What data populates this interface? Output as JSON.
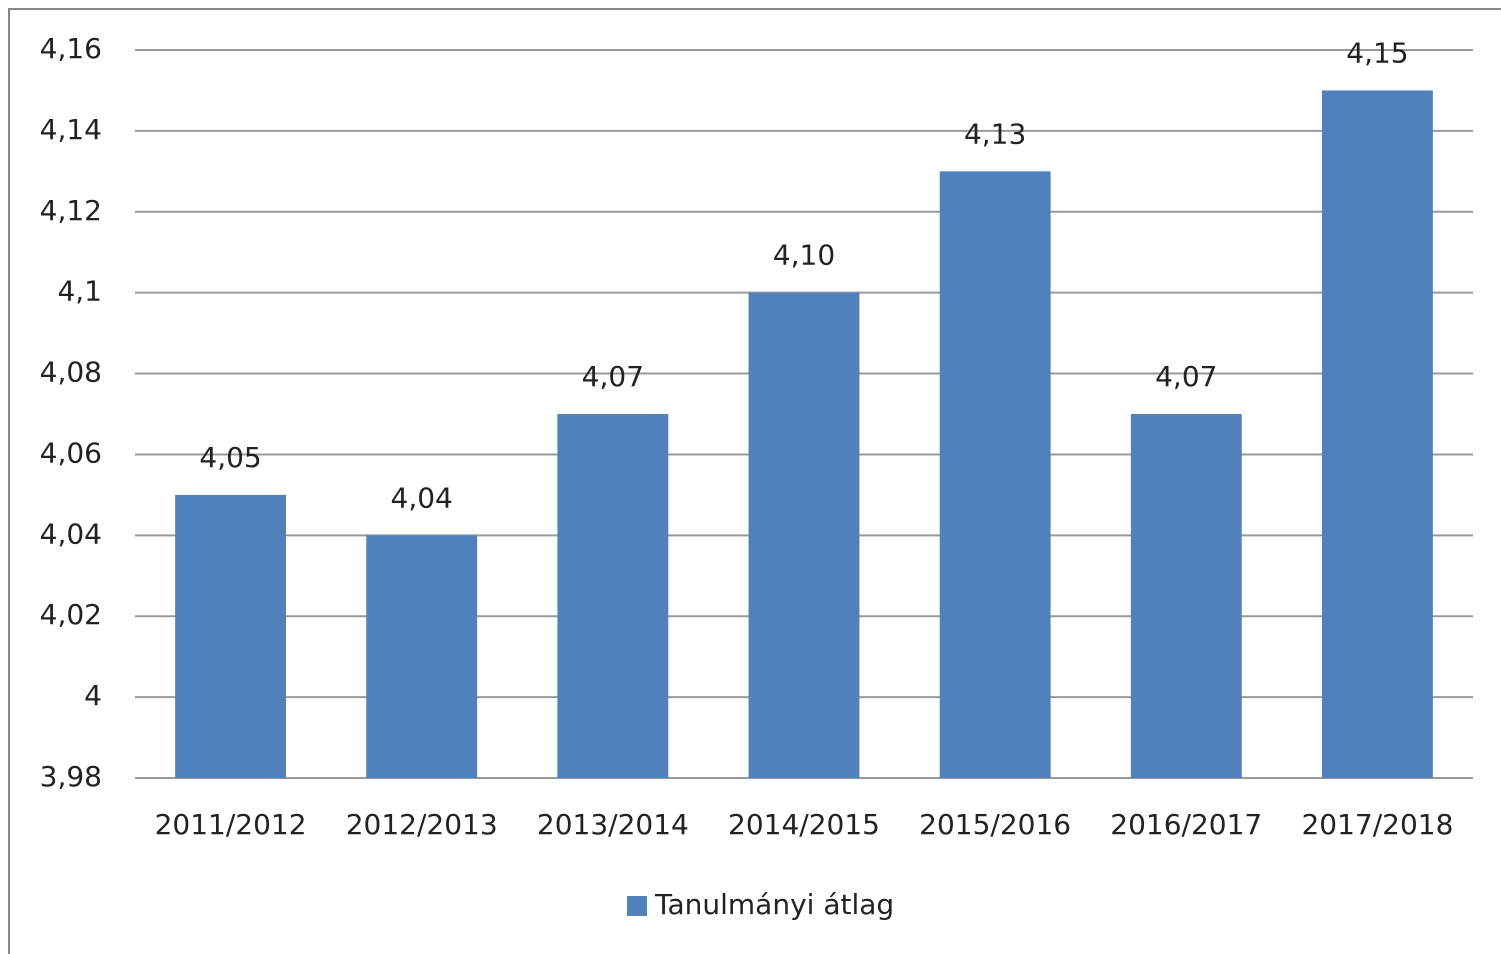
{
  "chart_data": {
    "type": "bar",
    "categories": [
      "2011/2012",
      "2012/2013",
      "2013/2014",
      "2014/2015",
      "2015/2016",
      "2016/2017",
      "2017/2018"
    ],
    "series": [
      {
        "name": "Tanulmányi átlag",
        "color": "#4f81bd",
        "values": [
          4.05,
          4.04,
          4.07,
          4.1,
          4.13,
          4.07,
          4.15
        ],
        "value_labels": [
          "4,05",
          "4,04",
          "4,07",
          "4,10",
          "4,13",
          "4,07",
          "4,15"
        ]
      }
    ],
    "ylim": [
      3.98,
      4.16
    ],
    "yticks": [
      {
        "value": 3.98,
        "label": "3,98"
      },
      4,
      {
        "value": 4.02,
        "label": "4,02"
      },
      {
        "value": 4.04,
        "label": "4,04"
      },
      {
        "value": 4.06,
        "label": "4,06"
      },
      {
        "value": 4.08,
        "label": "4,08"
      },
      {
        "value": 4.1,
        "label": "4,1"
      },
      {
        "value": 4.12,
        "label": "4,12"
      },
      {
        "value": 4.14,
        "label": "4,14"
      },
      {
        "value": 4.16,
        "label": "4,16"
      }
    ],
    "grid": true,
    "legend": "bottom"
  }
}
